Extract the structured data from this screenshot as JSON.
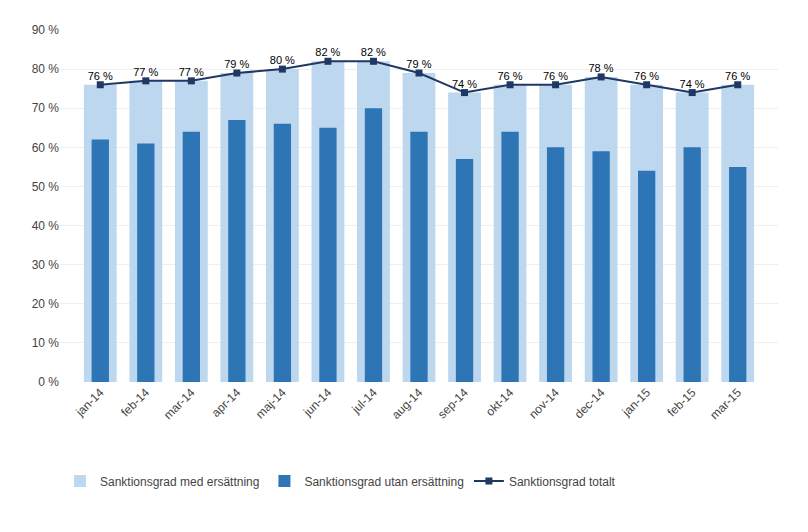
{
  "chart_data": {
    "type": "bar",
    "categories": [
      "jan-14",
      "feb-14",
      "mar-14",
      "apr-14",
      "maj-14",
      "jun-14",
      "jul-14",
      "aug-14",
      "sep-14",
      "okt-14",
      "nov-14",
      "dec-14",
      "jan-15",
      "feb-15",
      "mar-15"
    ],
    "series": [
      {
        "name": "Sanktionsgrad med ersättning",
        "type": "bar",
        "color": "#bdd7ee",
        "values": [
          76,
          77,
          77,
          79,
          80,
          82,
          82,
          79,
          74,
          76,
          76,
          78,
          76,
          74,
          76
        ],
        "data_labels": true,
        "value_labels": [
          "76 %",
          "77 %",
          "77 %",
          "79 %",
          "80 %",
          "82 %",
          "82 %",
          "79 %",
          "74 %",
          "76 %",
          "76 %",
          "78 %",
          "76 %",
          "74 %",
          "76 %"
        ]
      },
      {
        "name": "Sanktionsgrad utan ersättning",
        "type": "bar",
        "color": "#2e75b6",
        "values": [
          62,
          61,
          64,
          67,
          66,
          65,
          70,
          64,
          57,
          64,
          60,
          59,
          54,
          60,
          55
        ]
      },
      {
        "name": "Sanktionsgrad totalt",
        "type": "line",
        "color": "#1f3864",
        "marker": "square",
        "values": [
          76,
          77,
          77,
          79,
          80,
          82,
          82,
          79,
          74,
          76,
          76,
          78,
          76,
          74,
          76
        ]
      }
    ],
    "ylim": [
      0,
      90
    ],
    "yticks": [
      {
        "value": 0,
        "label": "0 %"
      },
      {
        "value": 10,
        "label": "10 %"
      },
      {
        "value": 20,
        "label": "20 %"
      },
      {
        "value": 30,
        "label": "30 %"
      },
      {
        "value": 40,
        "label": "40 %"
      },
      {
        "value": 50,
        "label": "50 %"
      },
      {
        "value": 60,
        "label": "60 %"
      },
      {
        "value": 70,
        "label": "70 %"
      },
      {
        "value": 80,
        "label": "80 %"
      },
      {
        "value": 90,
        "label": "90 %"
      }
    ],
    "grid": true,
    "legend": "bottom"
  }
}
